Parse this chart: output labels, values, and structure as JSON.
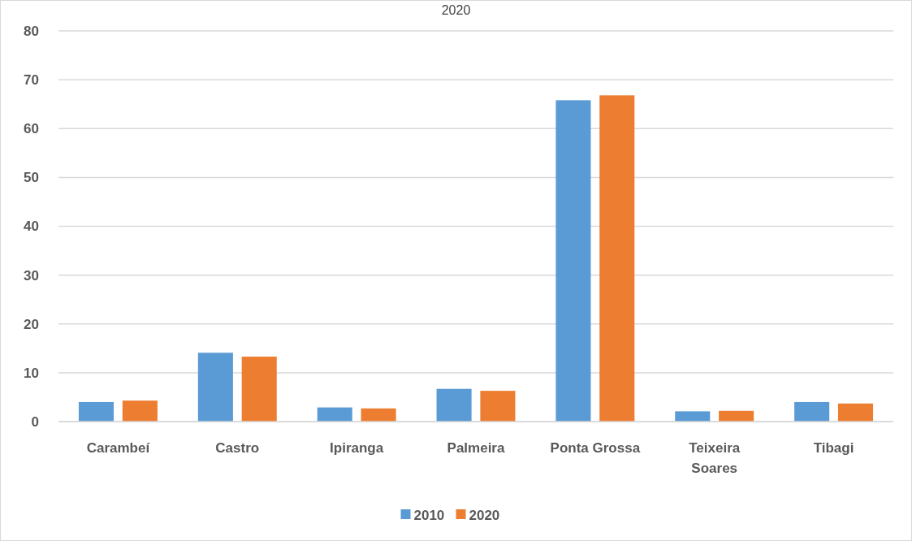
{
  "chart_data": {
    "type": "bar",
    "title": "2020",
    "categories": [
      "Carambeí",
      "Castro",
      "Ipiranga",
      "Palmeira",
      "Ponta Grossa",
      "Teixeira Soares",
      "Tibagi"
    ],
    "series": [
      {
        "name": "2010",
        "color": "#5b9bd5",
        "values": [
          4.0,
          14.1,
          2.9,
          6.7,
          65.8,
          2.1,
          4.0
        ]
      },
      {
        "name": "2020",
        "color": "#ed7d31",
        "values": [
          4.3,
          13.3,
          2.7,
          6.3,
          66.8,
          2.2,
          3.7
        ]
      }
    ],
    "ylim": [
      0,
      80
    ],
    "yticks": [
      0,
      10,
      20,
      30,
      40,
      50,
      60,
      70,
      80
    ],
    "grid": "y",
    "legend": "bottom"
  }
}
